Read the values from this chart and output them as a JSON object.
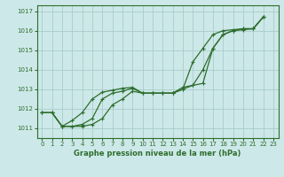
{
  "title": "Graphe pression niveau de la mer (hPa)",
  "bg_color": "#cde8e8",
  "grid_color": "#aacccc",
  "line_color": "#2d6e2d",
  "xlim": [
    -0.5,
    23.5
  ],
  "ylim": [
    1010.5,
    1017.3
  ],
  "yticks": [
    1011,
    1012,
    1013,
    1014,
    1015,
    1016,
    1017
  ],
  "xticks": [
    0,
    1,
    2,
    3,
    4,
    5,
    6,
    7,
    8,
    9,
    10,
    11,
    12,
    13,
    14,
    15,
    16,
    17,
    18,
    19,
    20,
    21,
    22,
    23
  ],
  "series_x": [
    [
      0,
      1,
      2,
      3,
      4,
      5,
      6,
      7,
      8,
      9,
      10,
      11,
      12,
      13,
      14,
      15,
      16,
      17,
      18,
      19,
      20,
      21,
      22
    ],
    [
      0,
      1,
      2,
      3,
      4,
      5,
      6,
      7,
      8,
      9,
      10,
      11,
      12,
      13,
      14,
      15,
      16,
      17,
      18,
      19,
      20,
      21,
      22
    ],
    [
      0,
      1,
      2,
      3,
      4,
      5,
      6,
      7,
      8,
      9,
      10,
      11,
      12,
      13,
      14,
      15,
      16,
      17,
      18,
      19,
      20,
      21,
      22
    ]
  ],
  "series_y": [
    [
      1011.8,
      1011.8,
      1011.1,
      1011.1,
      1011.1,
      1011.2,
      1011.5,
      1012.2,
      1012.5,
      1012.9,
      1012.8,
      1012.8,
      1012.8,
      1012.8,
      1013.1,
      1013.2,
      1013.3,
      1015.1,
      1015.8,
      1016.0,
      1016.1,
      1016.1,
      1016.7
    ],
    [
      1011.8,
      1011.8,
      1011.1,
      1011.1,
      1011.2,
      1011.5,
      1012.5,
      1012.8,
      1012.9,
      1013.05,
      1012.8,
      1012.8,
      1012.8,
      1012.8,
      1013.0,
      1013.2,
      1014.0,
      1015.1,
      1015.8,
      1016.0,
      1016.05,
      1016.1,
      1016.7
    ],
    [
      1011.8,
      1011.8,
      1011.1,
      1011.4,
      1011.8,
      1012.5,
      1012.85,
      1012.95,
      1013.05,
      1013.1,
      1012.8,
      1012.8,
      1012.8,
      1012.8,
      1013.0,
      1014.4,
      1015.1,
      1015.8,
      1016.0,
      1016.05,
      1016.1,
      1016.1,
      1016.7
    ]
  ],
  "title_fontsize": 6,
  "tick_fontsize": 5,
  "line_width": 0.9,
  "marker_size": 2.5
}
